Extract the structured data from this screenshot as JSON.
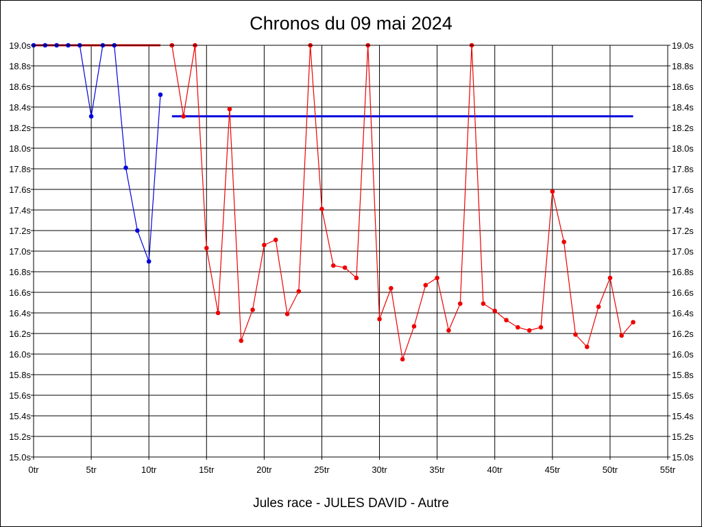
{
  "chart_data": {
    "type": "line",
    "title": "Chronos du 09 mai 2024",
    "caption": "Jules race - JULES DAVID - Autre",
    "x_ticks": [
      "0tr",
      "5tr",
      "10tr",
      "15tr",
      "20tr",
      "25tr",
      "30tr",
      "35tr",
      "40tr",
      "45tr",
      "50tr",
      "55tr"
    ],
    "x_tick_values": [
      0,
      5,
      10,
      15,
      20,
      25,
      30,
      35,
      40,
      45,
      50,
      55
    ],
    "y_ticks": [
      "15.0s",
      "15.2s",
      "15.4s",
      "15.6s",
      "15.8s",
      "16.0s",
      "16.2s",
      "16.4s",
      "16.6s",
      "16.8s",
      "17.0s",
      "17.2s",
      "17.4s",
      "17.6s",
      "17.8s",
      "18.0s",
      "18.2s",
      "18.4s",
      "18.6s",
      "18.8s",
      "19.0s"
    ],
    "y_tick_values": [
      15.0,
      15.2,
      15.4,
      15.6,
      15.8,
      16.0,
      16.2,
      16.4,
      16.6,
      16.8,
      17.0,
      17.2,
      17.4,
      17.6,
      17.8,
      18.0,
      18.2,
      18.4,
      18.6,
      18.8,
      19.0
    ],
    "xlim": [
      0,
      55
    ],
    "ylim": [
      15.0,
      19.0
    ],
    "grid": true,
    "colors": {
      "blue": "#0000dd",
      "red": "#ee0000",
      "grid": "#000000"
    },
    "series": [
      {
        "color": "#0000dd",
        "x": [
          0,
          1,
          2,
          3,
          4,
          5,
          6,
          7,
          8,
          9,
          10,
          11
        ],
        "y": [
          19.0,
          19.0,
          19.0,
          19.0,
          19.0,
          18.31,
          19.0,
          19.0,
          17.81,
          17.2,
          16.9,
          18.52
        ]
      },
      {
        "color": "#ee0000",
        "x": [
          12,
          13,
          14,
          15,
          16,
          17,
          18,
          19,
          20,
          21,
          22,
          23,
          24,
          25,
          26,
          27,
          28,
          29,
          30,
          31,
          32,
          33,
          34,
          35,
          36,
          37,
          38,
          39,
          40,
          41,
          42,
          43,
          44,
          45,
          46,
          47,
          48,
          49,
          50,
          51,
          52
        ],
        "y": [
          19.0,
          18.31,
          19.0,
          17.03,
          16.4,
          18.38,
          16.13,
          16.43,
          17.06,
          17.11,
          16.39,
          16.61,
          19.0,
          17.41,
          16.86,
          16.84,
          16.74,
          19.0,
          16.34,
          16.64,
          15.95,
          16.27,
          16.67,
          16.74,
          16.23,
          16.49,
          19.0,
          16.49,
          16.42,
          16.33,
          16.26,
          16.23,
          16.26,
          17.58,
          17.09,
          16.19,
          16.07,
          16.46,
          16.74,
          16.18,
          16.31
        ]
      }
    ],
    "reference_lines": [
      {
        "color": "#ee0000",
        "x": [
          0,
          11
        ],
        "y": 19.0
      },
      {
        "color": "#0000dd",
        "x": [
          12,
          52
        ],
        "y": 18.31
      }
    ]
  }
}
